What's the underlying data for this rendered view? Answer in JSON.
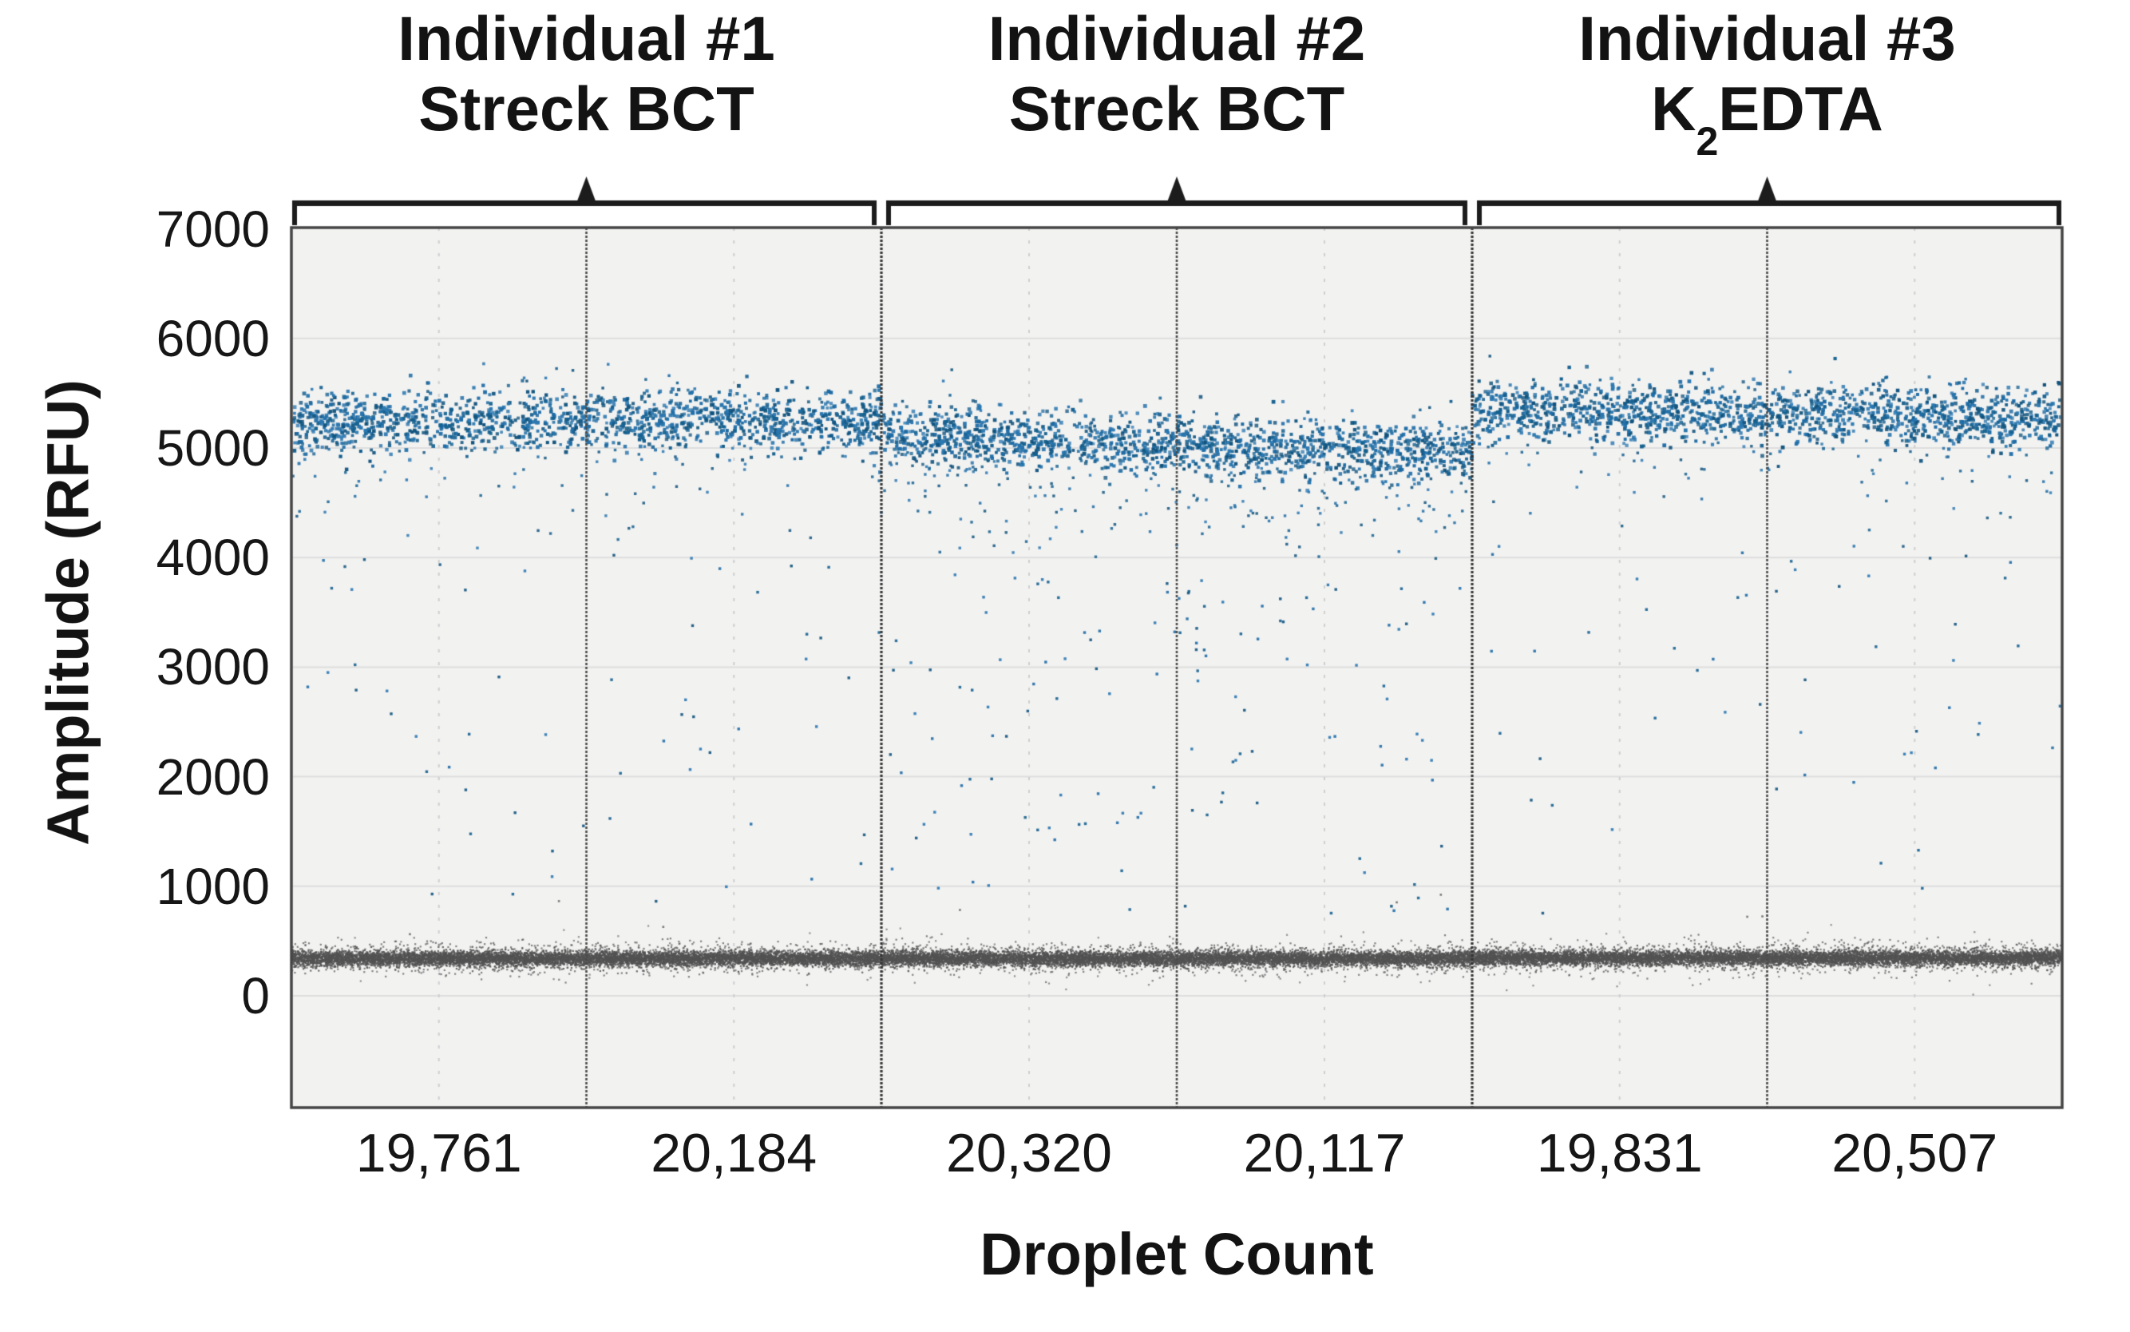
{
  "figure": {
    "y_axis_label": "Amplitude (RFU)",
    "x_axis_label": "Droplet Count",
    "y_tick_labels": [
      "7000",
      "6000",
      "5000",
      "4000",
      "3000",
      "2000",
      "1000",
      "0"
    ],
    "x_tick_labels": [
      "19,761",
      "20,184",
      "20,320",
      "20,117",
      "19,831",
      "20,507"
    ],
    "group_titles": [
      {
        "line1": "Individual #1",
        "line2": "Streck BCT"
      },
      {
        "line1": "Individual #2",
        "line2": "Streck BCT"
      },
      {
        "line1": "Individual #3",
        "line2_base": "K",
        "line2_sub": "2",
        "line2_rest": "EDTA"
      }
    ]
  },
  "chart_data": {
    "type": "scatter",
    "title": "",
    "xlabel": "Droplet Count",
    "ylabel": "Amplitude (RFU)",
    "ylim": [
      -1000,
      7000
    ],
    "yticks": [
      0,
      1000,
      2000,
      3000,
      4000,
      5000,
      6000,
      7000
    ],
    "grid": true,
    "legend": "none",
    "description": "ddPCR 1-D droplet amplitude plot; positive droplet band near 5000 RFU (blue), negative droplet band near 340 RFU (dark gray), light rain between bands; two replicate wells per individual separated by vertical lines; brace brackets above group the wells per individual.",
    "groups": [
      {
        "label": "Individual #1",
        "tube": "Streck BCT",
        "wells": [
          {
            "droplet_count": 19761,
            "positive_band_rfu_start": 5230,
            "positive_band_rfu_end": 5260,
            "negative_band_rfu": 340
          },
          {
            "droplet_count": 20184,
            "positive_band_rfu_start": 5280,
            "positive_band_rfu_end": 5230,
            "negative_band_rfu": 340
          }
        ]
      },
      {
        "label": "Individual #2",
        "tube": "Streck BCT",
        "wells": [
          {
            "droplet_count": 20320,
            "positive_band_rfu_start": 5130,
            "positive_band_rfu_end": 5010,
            "negative_band_rfu": 340
          },
          {
            "droplet_count": 20117,
            "positive_band_rfu_start": 5010,
            "positive_band_rfu_end": 4970,
            "negative_band_rfu": 340
          }
        ]
      },
      {
        "label": "Individual #3",
        "tube": "K2EDTA",
        "wells": [
          {
            "droplet_count": 19831,
            "positive_band_rfu_start": 5360,
            "positive_band_rfu_end": 5290,
            "negative_band_rfu": 345
          },
          {
            "droplet_count": 20507,
            "positive_band_rfu_start": 5300,
            "positive_band_rfu_end": 5250,
            "negative_band_rfu": 345
          }
        ]
      }
    ],
    "render": {
      "seed": 7,
      "positive_sigma_rfu": 135,
      "positives_per_well": 760,
      "skirt_per_well": [
        42,
        46,
        95,
        100,
        36,
        42
      ],
      "rain_per_well": [
        26,
        30,
        62,
        66,
        22,
        30
      ],
      "negatives_core_per_well": 3800,
      "negatives_fuzz_per_well": 900,
      "gray_strays": 9
    },
    "colors": {
      "positive_dots": [
        "#11537d",
        "#15608f",
        "#1e6ca6",
        "#2a77b0"
      ],
      "negative_dots": "#525252",
      "plot_bg": "#f2f2f1",
      "grid": "#dedede",
      "dashed_center_line": "#cfcfcf",
      "well_divider": "#4a4a4a",
      "section_divider": "#343434",
      "border": "#454545",
      "bracket": "#1c1c1c"
    }
  }
}
